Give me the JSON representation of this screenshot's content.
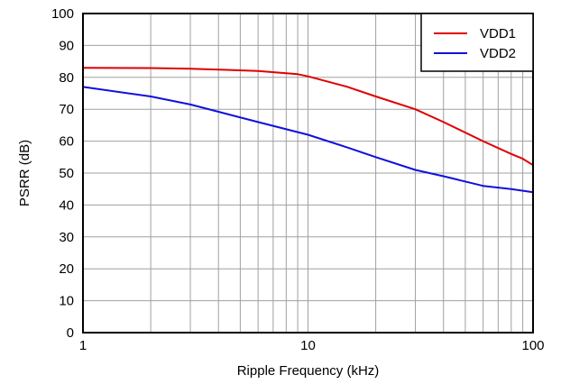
{
  "chart_data": {
    "type": "line",
    "title": "",
    "xlabel": "Ripple Frequency (kHz)",
    "ylabel": "PSRR (dB)",
    "x_scale": "log",
    "xlim": [
      1,
      100
    ],
    "ylim": [
      0,
      100
    ],
    "x_ticks": [
      1,
      10,
      100
    ],
    "x_tick_labels": [
      "1",
      "10",
      "100"
    ],
    "y_ticks": [
      0,
      10,
      20,
      30,
      40,
      50,
      60,
      70,
      80,
      90,
      100
    ],
    "y_tick_labels": [
      "0",
      "10",
      "20",
      "30",
      "40",
      "50",
      "60",
      "70",
      "80",
      "90",
      "100"
    ],
    "grid": true,
    "legend_position": "top-right",
    "series": [
      {
        "name": "VDD1",
        "color": "#e00000",
        "x": [
          1,
          2,
          3,
          6,
          9,
          10,
          15,
          20,
          30,
          40,
          60,
          80,
          90,
          100
        ],
        "y": [
          83,
          82.9,
          82.7,
          82,
          81,
          80.3,
          77,
          74,
          70,
          66,
          60,
          56,
          54.5,
          52.5
        ]
      },
      {
        "name": "VDD2",
        "color": "#1010dd",
        "x": [
          1,
          2,
          3,
          6,
          10,
          15,
          20,
          30,
          40,
          60,
          80,
          100
        ],
        "y": [
          77,
          74,
          71.5,
          66,
          62,
          58,
          55,
          51,
          49,
          46,
          45,
          44
        ]
      }
    ]
  }
}
